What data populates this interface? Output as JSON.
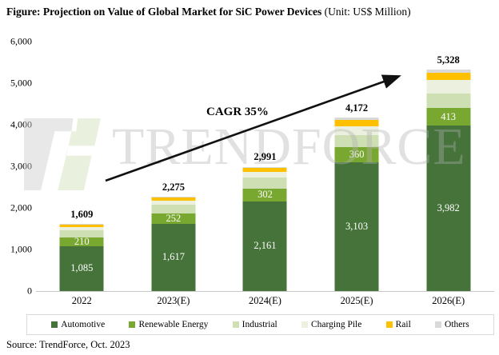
{
  "title": {
    "main": "Figure: Projection on Value of Global Market for SiC Power Devices",
    "unit": " (Unit: US$ Million)"
  },
  "annotation": {
    "cagr_label": "CAGR 35%"
  },
  "watermark": "TRENDFORCE",
  "source": "Source: TrendForce, Oct. 2023",
  "chart_data": {
    "type": "bar",
    "stacked": true,
    "title": "Projection on Value of Global Market for SiC Power Devices",
    "unit": "US$ Million",
    "categories": [
      "2022",
      "2023(E)",
      "2024(E)",
      "2025(E)",
      "2026(E)"
    ],
    "totals": [
      1609,
      2275,
      2991,
      4172,
      5328
    ],
    "total_labels": [
      "1,609",
      "2,275",
      "2,991",
      "4,172",
      "5,328"
    ],
    "series": [
      {
        "name": "Automotive",
        "color": "#45733a",
        "values": [
          1085,
          1617,
          2161,
          3103,
          3982
        ],
        "labels": [
          "1,085",
          "1,617",
          "2,161",
          "3,103",
          "3,982"
        ],
        "labeled": true
      },
      {
        "name": "Renewable Energy",
        "color": "#79a831",
        "values": [
          210,
          252,
          302,
          360,
          413
        ],
        "labels": [
          "210",
          "252",
          "302",
          "360",
          "413"
        ],
        "labeled": true
      },
      {
        "name": "Industrial",
        "color": "#cddfb3",
        "values": [
          165,
          215,
          270,
          290,
          360
        ],
        "estimated": true
      },
      {
        "name": "Charging Pile",
        "color": "#ebf1de",
        "values": [
          85,
          95,
          140,
          210,
          330
        ],
        "estimated": true
      },
      {
        "name": "Rail",
        "color": "#ffc000",
        "values": [
          50,
          70,
          85,
          150,
          170
        ],
        "estimated": true
      },
      {
        "name": "Others",
        "color": "#d9d9d9",
        "values": [
          14,
          26,
          33,
          59,
          73
        ],
        "estimated": true
      }
    ],
    "ylim": [
      0,
      6000
    ],
    "yticks": [
      {
        "value": 0,
        "label": "0"
      },
      {
        "value": 1000,
        "label": "1,000"
      },
      {
        "value": 2000,
        "label": "2,000"
      },
      {
        "value": 3000,
        "label": "3,000"
      },
      {
        "value": 4000,
        "label": "4,000"
      },
      {
        "value": 5000,
        "label": "5,000"
      },
      {
        "value": 6000,
        "label": "6,000"
      }
    ],
    "grid": false,
    "legend_position": "bottom"
  }
}
